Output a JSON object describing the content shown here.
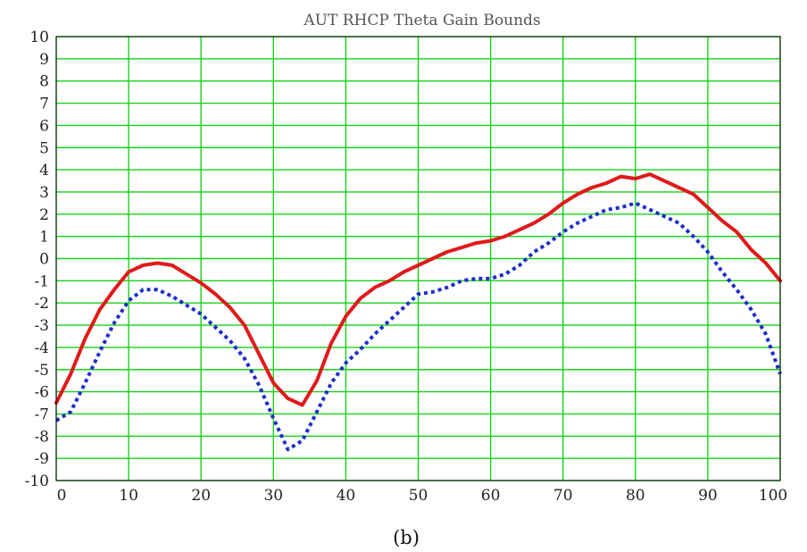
{
  "figure": {
    "caption": "(b)"
  },
  "chart_data": {
    "type": "line",
    "title": "AUT RHCP Theta Gain Bounds",
    "xlabel": "",
    "ylabel": "",
    "xlim": [
      0,
      100
    ],
    "ylim": [
      -10,
      10
    ],
    "xticks": [
      0,
      10,
      20,
      30,
      40,
      50,
      60,
      70,
      80,
      90,
      100
    ],
    "yticks": [
      10,
      9,
      8,
      7,
      6,
      5,
      4,
      3,
      2,
      1,
      0,
      -1,
      -2,
      -3,
      -4,
      -5,
      -6,
      -7,
      -8,
      -9,
      -10
    ],
    "grid": true,
    "colors": {
      "grid": "#19d219",
      "axis": "#000000",
      "upper": "#e01a1a",
      "lower": "#1a2ec8"
    },
    "series": [
      {
        "style": "solid",
        "color": "#e01a1a",
        "x": [
          0,
          2,
          4,
          6,
          8,
          10,
          12,
          14,
          16,
          18,
          20,
          22,
          24,
          26,
          28,
          30,
          32,
          34,
          36,
          38,
          40,
          42,
          44,
          46,
          48,
          50,
          52,
          54,
          56,
          58,
          60,
          62,
          64,
          66,
          68,
          70,
          72,
          74,
          76,
          78,
          80,
          82,
          84,
          86,
          88,
          90,
          92,
          94,
          96,
          98,
          100
        ],
        "y": [
          -6.5,
          -5.2,
          -3.6,
          -2.3,
          -1.4,
          -0.6,
          -0.3,
          -0.2,
          -0.3,
          -0.7,
          -1.1,
          -1.6,
          -2.2,
          -3.0,
          -4.3,
          -5.6,
          -6.3,
          -6.6,
          -5.5,
          -3.8,
          -2.6,
          -1.8,
          -1.3,
          -1.0,
          -0.6,
          -0.3,
          0.0,
          0.3,
          0.5,
          0.7,
          0.8,
          1.0,
          1.3,
          1.6,
          2.0,
          2.5,
          2.9,
          3.2,
          3.4,
          3.7,
          3.6,
          3.8,
          3.5,
          3.2,
          2.9,
          2.3,
          1.7,
          1.2,
          0.4,
          -0.2,
          -1.0
        ]
      },
      {
        "style": "dotted",
        "color": "#1a2ec8",
        "x": [
          0,
          2,
          4,
          6,
          8,
          10,
          12,
          14,
          16,
          18,
          20,
          22,
          24,
          26,
          28,
          30,
          32,
          34,
          36,
          38,
          40,
          42,
          44,
          46,
          48,
          50,
          52,
          54,
          56,
          58,
          60,
          62,
          64,
          66,
          68,
          70,
          72,
          74,
          76,
          78,
          80,
          82,
          84,
          86,
          88,
          90,
          92,
          94,
          96,
          98,
          100
        ],
        "y": [
          -7.3,
          -6.9,
          -5.6,
          -4.2,
          -2.9,
          -1.9,
          -1.4,
          -1.4,
          -1.7,
          -2.1,
          -2.5,
          -3.1,
          -3.7,
          -4.5,
          -5.7,
          -7.2,
          -8.6,
          -8.2,
          -6.9,
          -5.6,
          -4.7,
          -4.1,
          -3.4,
          -2.8,
          -2.2,
          -1.6,
          -1.5,
          -1.3,
          -1.0,
          -0.9,
          -0.9,
          -0.7,
          -0.3,
          0.3,
          0.7,
          1.2,
          1.6,
          1.9,
          2.2,
          2.3,
          2.5,
          2.2,
          1.9,
          1.6,
          1.0,
          0.3,
          -0.6,
          -1.4,
          -2.3,
          -3.4,
          -5.2
        ]
      }
    ]
  }
}
